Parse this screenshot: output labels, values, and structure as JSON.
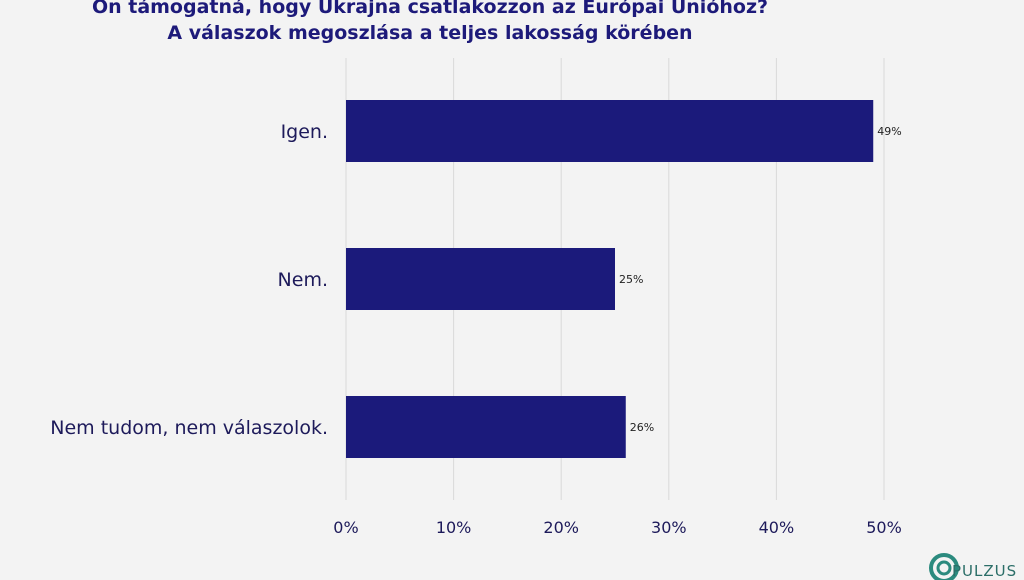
{
  "chart_data": {
    "type": "bar",
    "orientation": "horizontal",
    "title": "Ön támogatná, hogy Ukrajna csatlakozzon az Európai Unióhoz?",
    "subtitle": "A válaszok megoszlása a teljes lakosság körében",
    "categories": [
      "Igen.",
      "Nem.",
      "Nem tudom, nem válaszolok."
    ],
    "values": [
      49,
      25,
      26
    ],
    "data_labels": [
      "49%",
      "25%",
      "26%"
    ],
    "xlim": [
      0,
      50
    ],
    "x_ticks": [
      0,
      10,
      20,
      30,
      40,
      50
    ],
    "x_tick_labels": [
      "0%",
      "10%",
      "20%",
      "30%",
      "40%",
      "50%"
    ],
    "grid": true,
    "bar_color": "#1b1a7b"
  },
  "logo": {
    "text": "PULZUS"
  },
  "colors": {
    "background": "#f3f3f3",
    "title": "#1d1a7a",
    "grid": "#d9d9d9",
    "text": "#1d1a5a"
  }
}
